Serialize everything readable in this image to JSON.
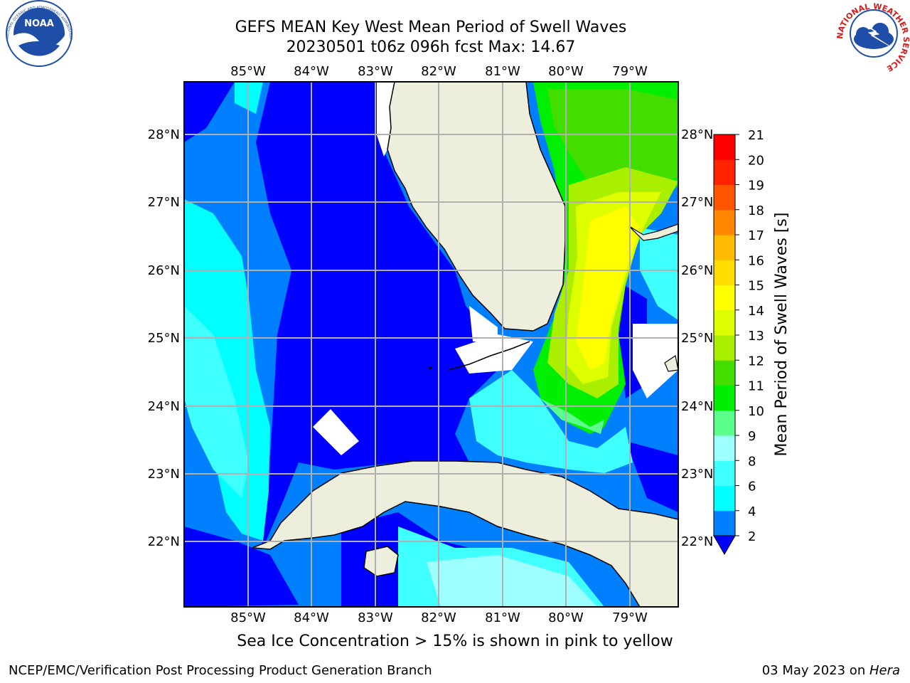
{
  "header": {
    "title_line1": "GEFS MEAN Key West Mean Period of Swell Waves",
    "title_line2": "20230501 t06z 096h fcst   Max: 14.67"
  },
  "logos": {
    "left": {
      "name": "noaa-logo",
      "text": "NOAA",
      "ring_text": "NATIONAL OCEANIC AND ATMOSPHERIC ADMINISTRATION • U.S. DEPARTMENT OF COMMERCE",
      "color": "#1e4ea8"
    },
    "right": {
      "name": "nws-logo",
      "ring_text": "NATIONAL WEATHER SERVICE",
      "color": "#d7191c"
    }
  },
  "map": {
    "lon_labels": [
      "85°W",
      "84°W",
      "83°W",
      "82°W",
      "81°W",
      "80°W",
      "79°W"
    ],
    "lat_labels": [
      "28°N",
      "27°N",
      "26°N",
      "25°N",
      "24°N",
      "23°N",
      "22°N"
    ],
    "land_color": "#eeeedd",
    "grid_color": "#b0b0b0"
  },
  "colorbar": {
    "label": "Mean Period of Swell Waves [s]",
    "ticks": [
      "2",
      "4",
      "6",
      "8",
      "9",
      "10",
      "11",
      "12",
      "13",
      "14",
      "15",
      "16",
      "17",
      "18",
      "19",
      "20",
      "21"
    ],
    "colors": [
      "#0000ff",
      "#0080ff",
      "#00ffff",
      "#40ffff",
      "#9effff",
      "#5aff8c",
      "#00ee00",
      "#44dd00",
      "#aaee00",
      "#ddff00",
      "#ffff00",
      "#ffdd00",
      "#ffbb00",
      "#ff8800",
      "#ff5500",
      "#ff2200",
      "#ff0000"
    ]
  },
  "footer": {
    "caption": "Sea Ice Concentration > 15% is shown in pink to yellow",
    "left": "NCEP/EMC/Verification Post Processing Product Generation Branch",
    "right_date": "03 May 2023 on ",
    "right_host": "Hera"
  }
}
